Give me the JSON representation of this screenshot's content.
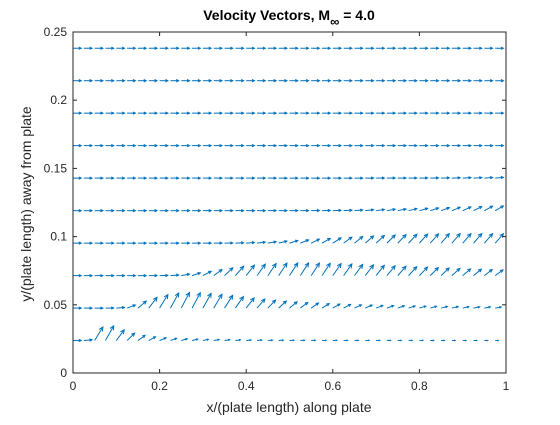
{
  "chart_data": {
    "type": "quiver",
    "title": "Velocity Vectors, M",
    "title_subscript": "∞",
    "title_suffix": " = 4.0",
    "xlabel": "x/(plate length) along plate",
    "ylabel": "y/(plate length) away from plate",
    "xlim": [
      0,
      1
    ],
    "ylim": [
      0,
      0.25
    ],
    "xticks": [
      0,
      0.2,
      0.4,
      0.6,
      0.8,
      1
    ],
    "xtick_labels": [
      "0",
      "0.2",
      "0.4",
      "0.6",
      "0.8",
      "1"
    ],
    "yticks": [
      0,
      0.05,
      0.1,
      0.15,
      0.2,
      0.25
    ],
    "ytick_labels": [
      "0",
      "0.05",
      "0.1",
      "0.15",
      "0.2",
      "0.25"
    ],
    "grid": false,
    "vector_color": "#0072bd",
    "rows_y": [
      0.0238,
      0.0476,
      0.0714,
      0.0952,
      0.119,
      0.1429,
      0.1667,
      0.1905,
      0.2143,
      0.2381
    ],
    "columns": 40,
    "x_start": 0.0,
    "x_end": 1.0,
    "freestream_u": 1.0,
    "boundary_layer": {
      "model": "delta = 0.09 * sqrt(x)",
      "coefficient": 0.09,
      "normal_velocity_peak": 0.6
    }
  }
}
